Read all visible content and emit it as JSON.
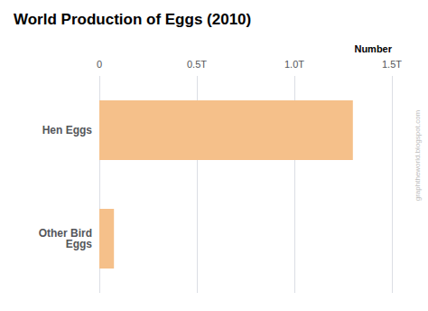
{
  "chart_data": {
    "type": "bar",
    "orientation": "horizontal",
    "title": "World Production of Eggs (2010)",
    "xlabel": "Number",
    "annotations": [
      "graphtheworld.blogspot.com"
    ],
    "categories": [
      "Hen Eggs",
      "Other Bird\nEggs"
    ],
    "values": [
      1.3,
      0.075
    ],
    "color": "#F5C08A",
    "xlim": [
      0,
      1.5
    ],
    "xticks": [
      0,
      {
        "value": 0.5,
        "label": "0.5T"
      },
      {
        "value": 1.0,
        "label": "1.0T"
      },
      {
        "value": 1.5,
        "label": "1.5T"
      }
    ],
    "grid": true
  }
}
